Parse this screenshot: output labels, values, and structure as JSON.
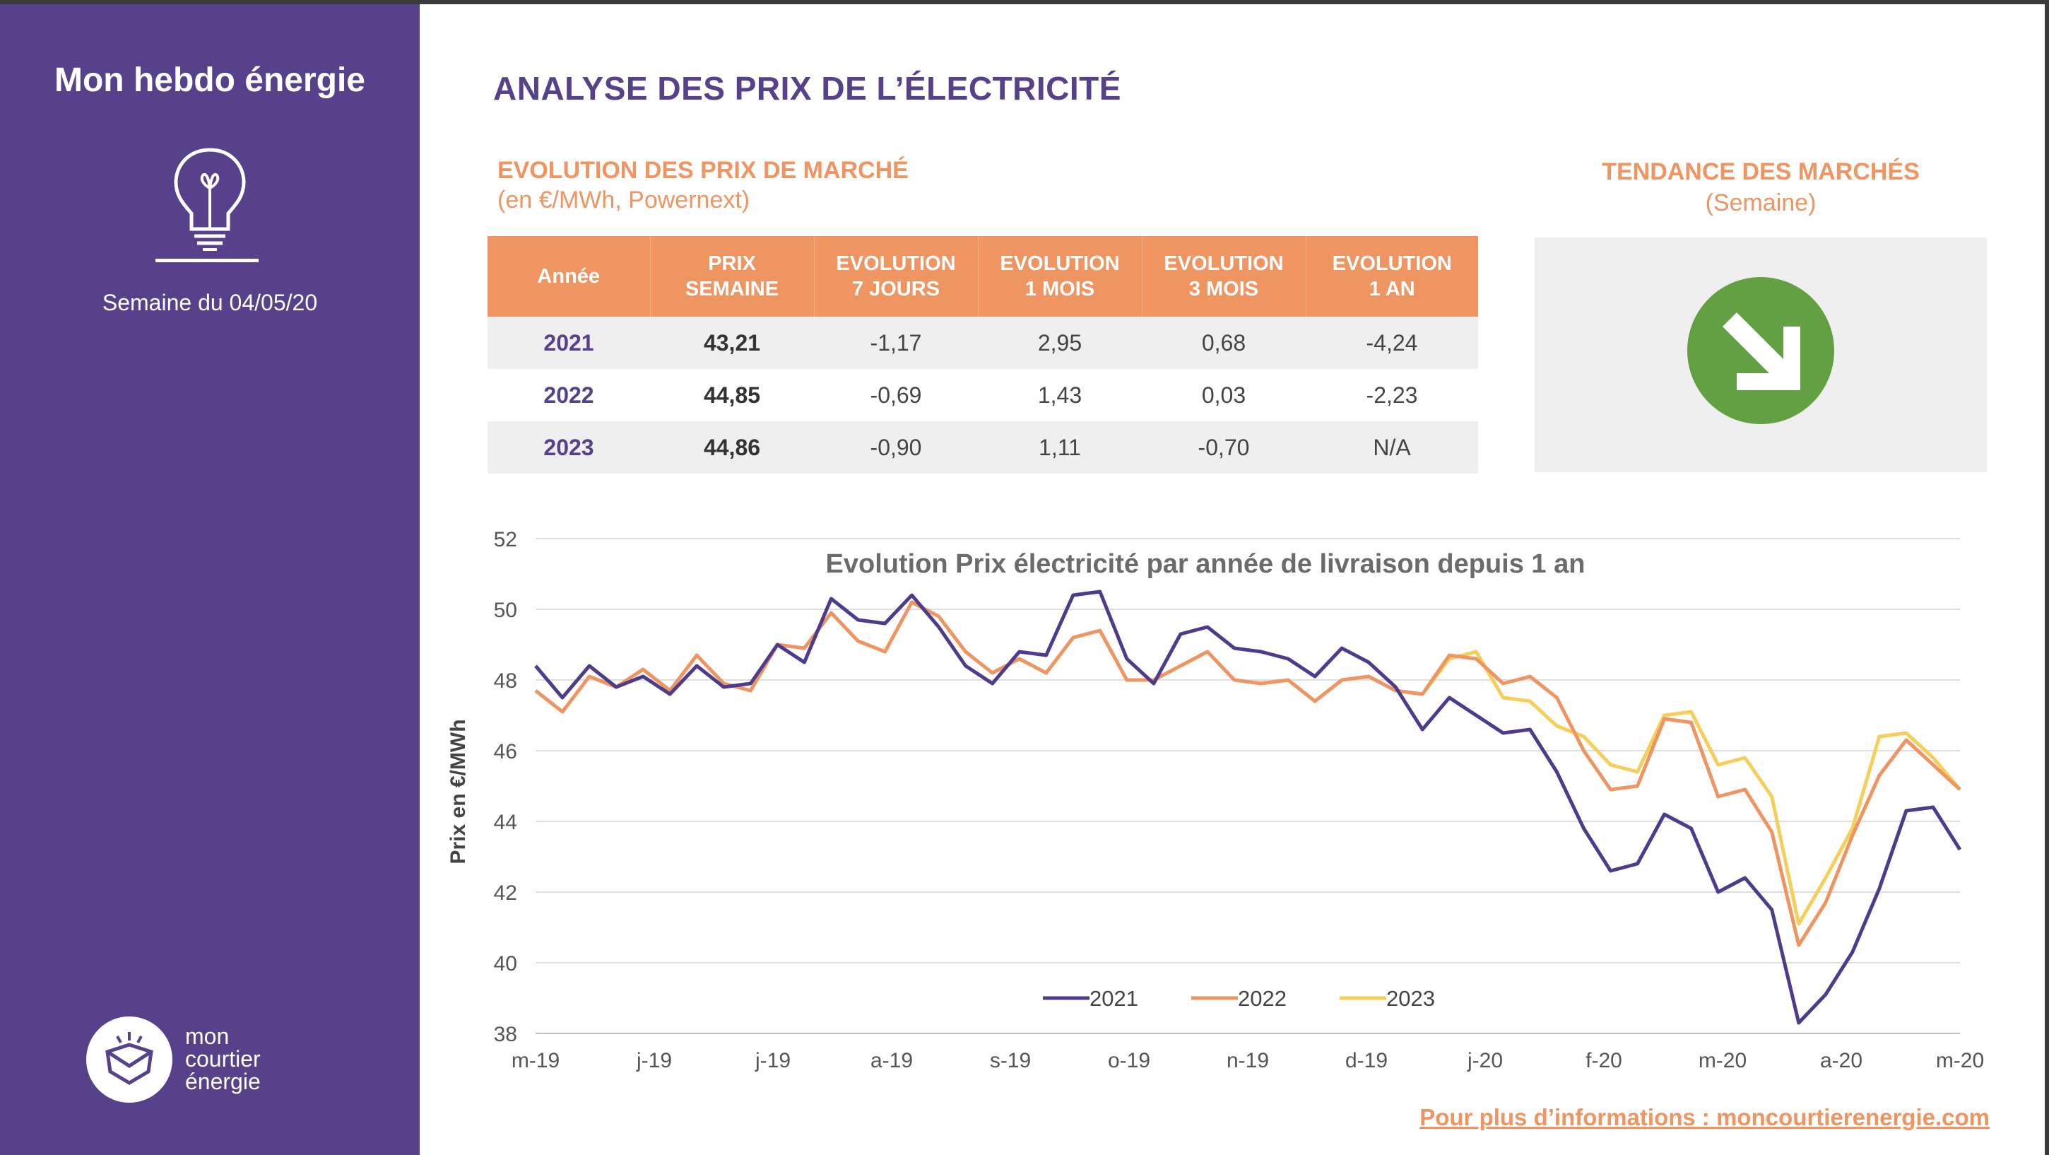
{
  "sidebar": {
    "brand_title": "Mon hebdo énergie",
    "week_label": "Semaine du 04/05/20",
    "logo_lines": [
      "mon",
      "courtier",
      "énergie"
    ],
    "icons": [
      "lightbulb-icon",
      "logo-mark-icon"
    ]
  },
  "header": {
    "main_title": "ANALYSE DES PRIX DE L’ÉLECTRICITÉ",
    "section_title": "EVOLUTION DES PRIX DE MARCHÉ",
    "section_subtitle": "(en €/MWh, Powernext)",
    "trend_title": "TENDANCE DES MARCHÉS",
    "trend_subtitle": "(Semaine)"
  },
  "trend": {
    "direction": "down-right",
    "icon": "arrow-down-right-icon",
    "color": "#62a043"
  },
  "table": {
    "headers": [
      [
        "Année"
      ],
      [
        "PRIX",
        "SEMAINE"
      ],
      [
        "EVOLUTION",
        "7 JOURS"
      ],
      [
        "EVOLUTION",
        "1 MOIS"
      ],
      [
        "EVOLUTION",
        "3 MOIS"
      ],
      [
        "EVOLUTION",
        "1 AN"
      ]
    ],
    "rows": [
      [
        "2021",
        "43,21",
        "-1,17",
        "2,95",
        "0,68",
        "-4,24"
      ],
      [
        "2022",
        "44,85",
        "-0,69",
        "1,43",
        "0,03",
        "-2,23"
      ],
      [
        "2023",
        "44,86",
        "-0,90",
        "1,11",
        "-0,70",
        "N/A"
      ]
    ]
  },
  "chart_data": {
    "type": "line",
    "title": "Evolution Prix électricité par année de livraison depuis 1 an",
    "xlabel": "",
    "ylabel": "Prix en €/MWh",
    "ylim": [
      38,
      52
    ],
    "yticks": [
      "38",
      "40",
      "42",
      "44",
      "46",
      "48",
      "50",
      "52"
    ],
    "xtick_labels": [
      "m-19",
      "j-19",
      "j-19",
      "a-19",
      "s-19",
      "o-19",
      "n-19",
      "d-19",
      "j-20",
      "f-20",
      "m-20",
      "a-20",
      "m-20"
    ],
    "grid": true,
    "legend_position": "bottom-center",
    "series": [
      {
        "name": "2021",
        "color": "#4f3b8c",
        "values": [
          48.4,
          47.5,
          48.4,
          47.8,
          48.1,
          47.6,
          48.4,
          47.8,
          47.9,
          49.0,
          48.5,
          50.3,
          49.7,
          49.6,
          50.4,
          49.5,
          48.4,
          47.9,
          48.8,
          48.7,
          50.4,
          50.5,
          48.6,
          47.9,
          49.3,
          49.5,
          48.9,
          48.8,
          48.6,
          48.1,
          48.9,
          48.5,
          47.8,
          46.6,
          47.5,
          47.0,
          46.5,
          46.6,
          45.4,
          43.8,
          42.6,
          42.8,
          44.2,
          43.8,
          42.0,
          42.4,
          41.5,
          38.3,
          39.1,
          40.3,
          42.1,
          44.3,
          44.4,
          43.2
        ]
      },
      {
        "name": "2022",
        "color": "#ee9562",
        "values": [
          47.7,
          47.1,
          48.1,
          47.8,
          48.3,
          47.7,
          48.7,
          47.9,
          47.7,
          49.0,
          48.9,
          49.9,
          49.1,
          48.8,
          50.2,
          49.8,
          48.8,
          48.2,
          48.6,
          48.2,
          49.2,
          49.4,
          48.0,
          48.0,
          48.4,
          48.8,
          48.0,
          47.9,
          48.0,
          47.4,
          48.0,
          48.1,
          47.7,
          47.6,
          48.7,
          48.6,
          47.9,
          48.1,
          47.5,
          46.0,
          44.9,
          45.0,
          46.9,
          46.8,
          44.7,
          44.9,
          43.7,
          40.5,
          41.7,
          43.6,
          45.3,
          46.3,
          45.6,
          44.9
        ]
      },
      {
        "name": "2023",
        "color": "#f5cf5a",
        "values": [
          null,
          null,
          null,
          null,
          null,
          null,
          null,
          null,
          null,
          null,
          null,
          null,
          null,
          null,
          null,
          null,
          null,
          null,
          null,
          null,
          null,
          null,
          null,
          null,
          null,
          null,
          null,
          null,
          null,
          null,
          null,
          null,
          47.7,
          47.6,
          48.6,
          48.8,
          47.5,
          47.4,
          46.7,
          46.4,
          45.6,
          45.4,
          47.0,
          47.1,
          45.6,
          45.8,
          44.7,
          41.1,
          42.4,
          43.8,
          46.4,
          46.5,
          45.8,
          44.9
        ]
      }
    ]
  },
  "footer": {
    "link_text": "Pour plus d’informations : moncourtierenergie.com"
  }
}
